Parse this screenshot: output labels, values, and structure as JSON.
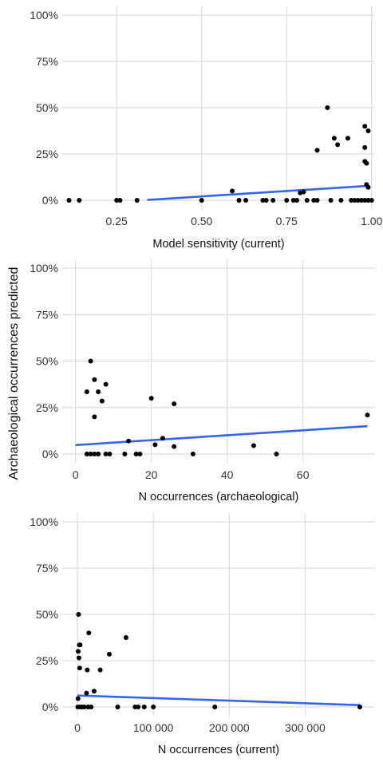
{
  "y_axis_label": "Archaeological occurrences predicted",
  "chart_data": [
    {
      "type": "scatter",
      "xlabel": "Model sensitivity (current)",
      "ylabel": "Archaeological occurrences predicted",
      "xlim": [
        0.09,
        1.01
      ],
      "ylim": [
        0,
        1
      ],
      "x_ticks": [
        0.25,
        0.5,
        0.75,
        1.0
      ],
      "x_tick_labels": [
        "0.25",
        "0.50",
        "0.75",
        "1.00"
      ],
      "y_ticks": [
        0,
        0.25,
        0.5,
        0.75,
        1.0
      ],
      "y_tick_labels": [
        "0%",
        "25%",
        "50%",
        "75%",
        "100%"
      ],
      "grid": true,
      "points": [
        [
          0.11,
          0
        ],
        [
          0.14,
          0
        ],
        [
          0.25,
          0
        ],
        [
          0.26,
          0
        ],
        [
          0.31,
          0
        ],
        [
          0.5,
          0
        ],
        [
          0.59,
          0.05
        ],
        [
          0.61,
          0
        ],
        [
          0.63,
          0
        ],
        [
          0.68,
          0
        ],
        [
          0.69,
          0
        ],
        [
          0.71,
          0
        ],
        [
          0.75,
          0
        ],
        [
          0.77,
          0
        ],
        [
          0.78,
          0
        ],
        [
          0.79,
          0.04
        ],
        [
          0.8,
          0.045
        ],
        [
          0.81,
          0
        ],
        [
          0.83,
          0
        ],
        [
          0.84,
          0
        ],
        [
          0.84,
          0.27
        ],
        [
          0.87,
          0.5
        ],
        [
          0.88,
          0
        ],
        [
          0.89,
          0.335
        ],
        [
          0.9,
          0.3
        ],
        [
          0.91,
          0
        ],
        [
          0.93,
          0.335
        ],
        [
          0.94,
          0
        ],
        [
          0.95,
          0
        ],
        [
          0.96,
          0
        ],
        [
          0.97,
          0
        ],
        [
          0.98,
          0
        ],
        [
          0.98,
          0.4
        ],
        [
          0.98,
          0.285
        ],
        [
          0.98,
          0.21
        ],
        [
          0.985,
          0.2
        ],
        [
          0.985,
          0.085
        ],
        [
          0.99,
          0
        ],
        [
          0.99,
          0.375
        ],
        [
          0.99,
          0.07
        ],
        [
          1.0,
          0
        ]
      ],
      "trend": {
        "x": [
          0.34,
          0.99
        ],
        "y": [
          0.002,
          0.078
        ]
      }
    },
    {
      "type": "scatter",
      "xlabel": "N occurrences (archaeological)",
      "ylabel": "Archaeological occurrences predicted",
      "xlim": [
        -3.5,
        79
      ],
      "ylim": [
        0,
        1
      ],
      "x_ticks": [
        0,
        20,
        40,
        60
      ],
      "x_tick_labels": [
        "0",
        "20",
        "40",
        "60"
      ],
      "y_ticks": [
        0,
        0.25,
        0.5,
        0.75,
        1.0
      ],
      "y_tick_labels": [
        "0%",
        "25%",
        "50%",
        "75%",
        "100%"
      ],
      "grid": true,
      "points": [
        [
          3,
          0.335
        ],
        [
          3,
          0
        ],
        [
          4,
          0
        ],
        [
          4,
          0.5
        ],
        [
          5,
          0.4
        ],
        [
          5,
          0
        ],
        [
          5,
          0.2
        ],
        [
          6,
          0
        ],
        [
          6,
          0.335
        ],
        [
          7,
          0.285
        ],
        [
          8,
          0
        ],
        [
          8,
          0.375
        ],
        [
          9,
          0
        ],
        [
          13,
          0
        ],
        [
          14,
          0.07
        ],
        [
          16,
          0
        ],
        [
          17,
          0
        ],
        [
          20,
          0.3
        ],
        [
          21,
          0.05
        ],
        [
          23,
          0.085
        ],
        [
          26,
          0.27
        ],
        [
          26,
          0.04
        ],
        [
          31,
          0
        ],
        [
          47,
          0.045
        ],
        [
          53,
          0
        ],
        [
          77,
          0.21
        ]
      ],
      "trend": {
        "x": [
          0,
          77
        ],
        "y": [
          0.048,
          0.15
        ]
      }
    },
    {
      "type": "scatter",
      "xlabel": "N occurrences (current)",
      "ylabel": "Archaeological occurrences predicted",
      "xlim": [
        -20000,
        392000
      ],
      "ylim": [
        0,
        1
      ],
      "x_ticks": [
        0,
        100000,
        200000,
        300000
      ],
      "x_tick_labels": [
        "0",
        "100 000",
        "200 000",
        "300 000"
      ],
      "y_ticks": [
        0,
        0.25,
        0.5,
        0.75,
        1.0
      ],
      "y_tick_labels": [
        "0%",
        "25%",
        "50%",
        "75%",
        "100%"
      ],
      "grid": true,
      "points": [
        [
          500,
          0
        ],
        [
          800,
          0.045
        ],
        [
          1000,
          0.3
        ],
        [
          1500,
          0.5
        ],
        [
          2000,
          0.265
        ],
        [
          2500,
          0.335
        ],
        [
          3000,
          0.21
        ],
        [
          3500,
          0.335
        ],
        [
          4000,
          0
        ],
        [
          6000,
          0
        ],
        [
          9000,
          0
        ],
        [
          12000,
          0.075
        ],
        [
          13000,
          0.2
        ],
        [
          14000,
          0
        ],
        [
          15000,
          0.4
        ],
        [
          18000,
          0
        ],
        [
          22000,
          0.085
        ],
        [
          30000,
          0.2
        ],
        [
          42000,
          0.285
        ],
        [
          53000,
          0
        ],
        [
          64000,
          0.375
        ],
        [
          76000,
          0
        ],
        [
          80000,
          0
        ],
        [
          88000,
          0
        ],
        [
          100000,
          0
        ],
        [
          181000,
          0
        ],
        [
          372000,
          0
        ]
      ],
      "trend": {
        "x": [
          0,
          372000
        ],
        "y": [
          0.062,
          0.01
        ]
      }
    }
  ]
}
